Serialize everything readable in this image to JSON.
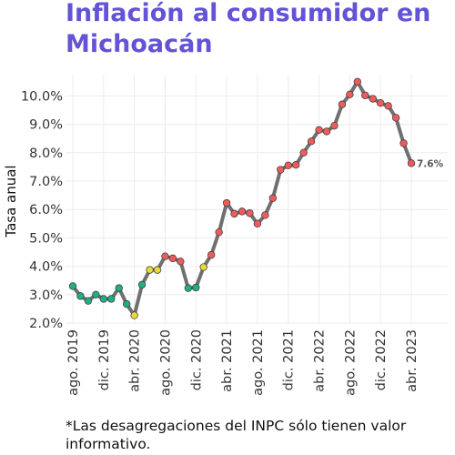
{
  "chart_data": {
    "type": "line",
    "title": "Inflación al consumidor en Michoacán",
    "xlabel": "",
    "ylabel": "Tasa anual",
    "ylim": [
      2.0,
      10.75
    ],
    "yticks": [
      "2.0%",
      "3.0%",
      "4.0%",
      "5.0%",
      "6.0%",
      "7.0%",
      "8.0%",
      "9.0%",
      "10.0%"
    ],
    "xticks": [
      "ago. 2019",
      "dic. 2019",
      "abr. 2020",
      "ago. 2020",
      "dic. 2020",
      "abr. 2021",
      "ago. 2021",
      "dic. 2021",
      "abr. 2022",
      "ago. 2022",
      "dic. 2022",
      "abr. 2023"
    ],
    "x": [
      "2019-08",
      "2019-09",
      "2019-10",
      "2019-11",
      "2019-12",
      "2020-01",
      "2020-02",
      "2020-03",
      "2020-04",
      "2020-05",
      "2020-06",
      "2020-07",
      "2020-08",
      "2020-09",
      "2020-10",
      "2020-11",
      "2020-12",
      "2021-01",
      "2021-02",
      "2021-03",
      "2021-04",
      "2021-05",
      "2021-06",
      "2021-07",
      "2021-08",
      "2021-09",
      "2021-10",
      "2021-11",
      "2021-12",
      "2022-01",
      "2022-02",
      "2022-03",
      "2022-04",
      "2022-05",
      "2022-06",
      "2022-07",
      "2022-08",
      "2022-09",
      "2022-10",
      "2022-11",
      "2022-12",
      "2023-01",
      "2023-02",
      "2023-03",
      "2023-04"
    ],
    "values": [
      3.3,
      2.95,
      2.78,
      3.0,
      2.85,
      2.85,
      3.23,
      2.67,
      2.27,
      3.35,
      3.87,
      3.87,
      4.35,
      4.28,
      4.17,
      3.23,
      3.25,
      3.97,
      4.4,
      5.2,
      6.23,
      5.85,
      5.93,
      5.87,
      5.5,
      5.8,
      6.4,
      7.4,
      7.55,
      7.57,
      8.0,
      8.4,
      8.8,
      8.75,
      8.95,
      9.7,
      10.05,
      10.5,
      10.02,
      9.9,
      9.75,
      9.65,
      9.23,
      8.33,
      7.63
    ],
    "point_colors": [
      "#1fae86",
      "#1fae86",
      "#1fae86",
      "#1fae86",
      "#1fae86",
      "#1fae86",
      "#1fae86",
      "#1fae86",
      "#e6d93a",
      "#1fae86",
      "#e6d93a",
      "#e6d93a",
      "#ef5b5b",
      "#ef5b5b",
      "#ef5b5b",
      "#1fae86",
      "#1fae86",
      "#e6d93a",
      "#ef5b5b",
      "#ef5b5b",
      "#ef5b5b",
      "#ef5b5b",
      "#ef5b5b",
      "#ef5b5b",
      "#ef5b5b",
      "#ef5b5b",
      "#ef5b5b",
      "#ef5b5b",
      "#ef5b5b",
      "#ef5b5b",
      "#ef5b5b",
      "#ef5b5b",
      "#ef5b5b",
      "#ef5b5b",
      "#ef5b5b",
      "#ef5b5b",
      "#ef5b5b",
      "#ef5b5b",
      "#ef5b5b",
      "#ef5b5b",
      "#ef5b5b",
      "#ef5b5b",
      "#ef5b5b",
      "#ef5b5b",
      "#ef5b5b"
    ],
    "last_label": "7.6%",
    "grid": true,
    "colors": {
      "title": "#6353d6",
      "line": "#707070",
      "grid": "#ececec"
    }
  },
  "footnote": "*Las desagregaciones del INPC sólo tienen valor informativo."
}
